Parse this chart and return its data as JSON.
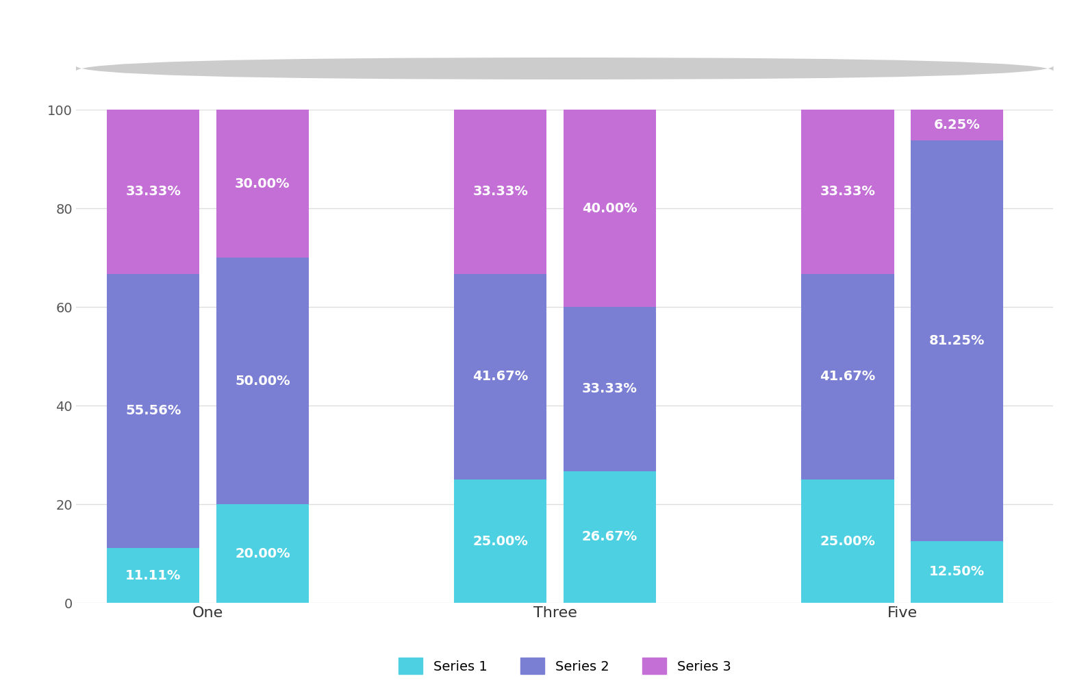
{
  "groups": [
    "One",
    "Three",
    "Five"
  ],
  "series1_values": [
    11.11,
    20.0,
    25.0,
    26.67,
    25.0,
    12.5
  ],
  "series2_values": [
    55.56,
    50.0,
    41.67,
    33.33,
    41.67,
    81.25
  ],
  "series3_values": [
    33.33,
    30.0,
    33.33,
    40.0,
    33.33,
    6.25
  ],
  "series1_color": "#4DD0E1",
  "series2_color": "#7B7FD4",
  "series3_color": "#C36FD6",
  "bar_width": 0.72,
  "ylim": [
    0,
    100
  ],
  "yticks": [
    0,
    20,
    40,
    60,
    80,
    100
  ],
  "background_color": "#ffffff",
  "grid_color": "#dddddd",
  "text_color": "#ffffff",
  "label_fontsize": 14,
  "tick_fontsize": 14,
  "legend_fontsize": 14,
  "series_labels": [
    "Series 1",
    "Series 2",
    "Series 3"
  ],
  "scrollbar_color": "#cccccc",
  "bar_positions": [
    1.0,
    1.85,
    3.7,
    4.55,
    6.4,
    7.25
  ],
  "group_centers": [
    1.425,
    4.125,
    6.825
  ],
  "xlim": [
    0.4,
    8.0
  ]
}
